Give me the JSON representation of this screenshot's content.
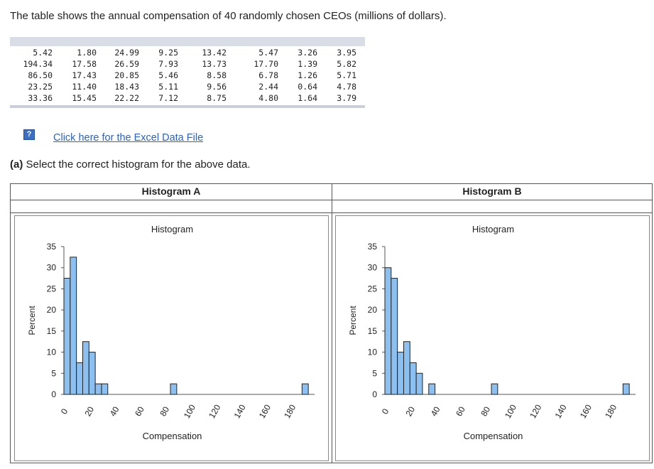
{
  "question_text": "The table shows the annual compensation of 40 randomly chosen CEOs (millions of dollars).",
  "data_table": [
    [
      "5.42",
      "1.80",
      "24.99",
      "9.25",
      "13.42",
      "5.47",
      "3.26",
      "3.95"
    ],
    [
      "194.34",
      "17.58",
      "26.59",
      "7.93",
      "13.73",
      "17.70",
      "1.39",
      "5.82"
    ],
    [
      "86.50",
      "17.43",
      "20.85",
      "5.46",
      "8.58",
      "6.78",
      "1.26",
      "5.71"
    ],
    [
      "23.25",
      "11.40",
      "18.43",
      "5.11",
      "9.56",
      "2.44",
      "0.64",
      "4.78"
    ],
    [
      "33.36",
      "15.45",
      "22.22",
      "7.12",
      "8.75",
      "4.80",
      "1.64",
      "3.79"
    ]
  ],
  "help_icon": "question-icon",
  "excel_link": "Click here for the Excel Data File",
  "prompt_label": "(a)",
  "prompt_text": "Select the correct histogram for the above data.",
  "histogram_a_header": "Histogram A",
  "histogram_b_header": "Histogram B",
  "colors": {
    "bar_fill": "#8cc0f0",
    "bar_stroke": "#222222",
    "link": "#2b63c2"
  },
  "chart_data": [
    {
      "type": "bar",
      "title": "Histogram",
      "xlabel": "Compensation",
      "ylabel": "Percent",
      "ylim": [
        0,
        35
      ],
      "yticks": [
        0,
        5,
        10,
        15,
        20,
        25,
        30,
        35
      ],
      "xticks": [
        0,
        20,
        40,
        60,
        80,
        100,
        120,
        140,
        160,
        180
      ],
      "xlim": [
        0,
        200
      ],
      "bins": [
        {
          "x0": 0,
          "x1": 5,
          "value": 27.5
        },
        {
          "x0": 5,
          "x1": 10,
          "value": 32.5
        },
        {
          "x0": 10,
          "x1": 15,
          "value": 7.5
        },
        {
          "x0": 15,
          "x1": 20,
          "value": 12.5
        },
        {
          "x0": 20,
          "x1": 25,
          "value": 10
        },
        {
          "x0": 25,
          "x1": 30,
          "value": 2.5
        },
        {
          "x0": 30,
          "x1": 35,
          "value": 2.5
        },
        {
          "x0": 85,
          "x1": 90,
          "value": 2.5
        },
        {
          "x0": 190,
          "x1": 195,
          "value": 2.5
        }
      ]
    },
    {
      "type": "bar",
      "title": "Histogram",
      "xlabel": "Compensation",
      "ylabel": "Percent",
      "ylim": [
        0,
        35
      ],
      "yticks": [
        0,
        5,
        10,
        15,
        20,
        25,
        30,
        35
      ],
      "xticks": [
        0,
        20,
        40,
        60,
        80,
        100,
        120,
        140,
        160,
        180
      ],
      "xlim": [
        0,
        200
      ],
      "bins": [
        {
          "x0": 0,
          "x1": 5,
          "value": 30
        },
        {
          "x0": 5,
          "x1": 10,
          "value": 27.5
        },
        {
          "x0": 10,
          "x1": 15,
          "value": 10
        },
        {
          "x0": 15,
          "x1": 20,
          "value": 12.5
        },
        {
          "x0": 20,
          "x1": 25,
          "value": 7.5
        },
        {
          "x0": 25,
          "x1": 30,
          "value": 5
        },
        {
          "x0": 35,
          "x1": 40,
          "value": 2.5
        },
        {
          "x0": 85,
          "x1": 90,
          "value": 2.5
        },
        {
          "x0": 190,
          "x1": 195,
          "value": 2.5
        }
      ]
    }
  ]
}
